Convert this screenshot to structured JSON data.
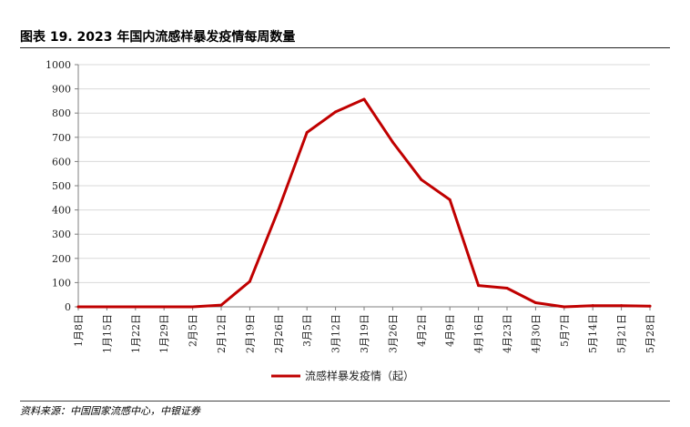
{
  "header": {
    "title": "图表 19. 2023 年国内流感样暴发疫情每周数量"
  },
  "footer": {
    "source": "资料来源：中国国家流感中心，中银证券"
  },
  "colors": {
    "series": "#c00000",
    "grid": "#d9d9d9",
    "axis": "#7f7f7f"
  },
  "chart_data": {
    "type": "line",
    "title": "",
    "xlabel": "",
    "ylabel": "",
    "ylim": [
      0,
      1000
    ],
    "yticks": [
      0,
      100,
      200,
      300,
      400,
      500,
      600,
      700,
      800,
      900,
      1000
    ],
    "grid": "horizontal",
    "legend_position": "bottom",
    "categories": [
      "1月8日",
      "1月15日",
      "1月22日",
      "1月29日",
      "2月5日",
      "2月12日",
      "2月19日",
      "2月26日",
      "3月5日",
      "3月12日",
      "3月19日",
      "3月26日",
      "4月2日",
      "4月9日",
      "4月16日",
      "4月23日",
      "4月30日",
      "5月7日",
      "5月14日",
      "5月21日",
      "5月28日"
    ],
    "series": [
      {
        "name": "流感样暴发疫情（起）",
        "values": [
          0,
          0,
          0,
          0,
          0,
          7,
          105,
          400,
          720,
          805,
          857,
          680,
          525,
          442,
          88,
          77,
          17,
          0,
          5,
          5,
          3
        ]
      }
    ]
  }
}
